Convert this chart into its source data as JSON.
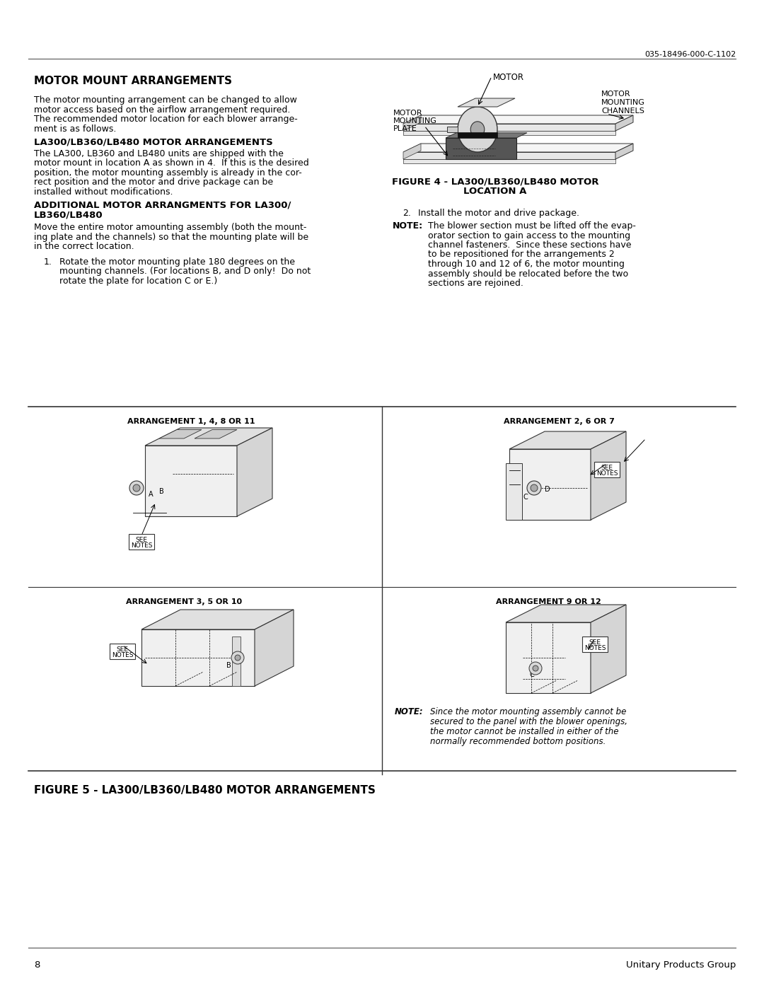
{
  "page_number": "8",
  "doc_number": "035-18496-000-C-1102",
  "footer_right": "Unitary Products Group",
  "bg_color": "#ffffff",
  "title": "MOTOR MOUNT ARRANGEMENTS",
  "para1_lines": [
    "The motor mounting arrangement can be changed to allow",
    "motor access based on the airflow arrangement required.",
    "The recommended motor location for each blower arrange-",
    "ment is as follows."
  ],
  "sub1": "LA300/LB360/LB480 MOTOR ARRANGEMENTS",
  "para2_lines": [
    "The LA300, LB360 and LB480 units are shipped with the",
    "motor mount in location A as shown in 4.  If this is the desired",
    "position, the motor mounting assembly is already in the cor-",
    "rect position and the motor and drive package can be",
    "installed without modifications."
  ],
  "sub2a": "ADDITIONAL MOTOR ARRANGMENTS FOR LA300/",
  "sub2b": "LB360/LB480",
  "para3_lines": [
    "Move the entire motor amounting assembly (both the mount-",
    "ing plate and the channels) so that the mounting plate will be",
    "in the correct location."
  ],
  "item1_num": "1.",
  "item1_lines": [
    "Rotate the motor mounting plate 180 degrees on the",
    "mounting channels. (For locations B, and D only!  Do not",
    "rotate the plate for location C or E.)"
  ],
  "fig4_cap1": "FIGURE 4 - LA300/LB360/LB480 MOTOR",
  "fig4_cap2": "LOCATION A",
  "item2_num": "2.",
  "item2_text": "Install the motor and drive package.",
  "note_label": "NOTE:",
  "note_lines": [
    "The blower section must be lifted off the evap-",
    "orator section to gain access to the mounting",
    "channel fasteners.  Since these sections have",
    "to be repositioned for the arrangements 2",
    "through 10 and 12 of 6, the motor mounting",
    "assembly should be relocated before the two",
    "sections are rejoined."
  ],
  "fig5_caption": "FIGURE 5 - LA300/LB360/LB480 MOTOR ARRANGEMENTS",
  "arr1_label": "ARRANGEMENT 1, 4, 8 OR 11",
  "arr2_label": "ARRANGEMENT 2, 6 OR 7",
  "arr3_label": "ARRANGEMENT 3, 5 OR 10",
  "arr4_label": "ARRANGEMENT 9 OR 12",
  "fig5_note_label": "NOTE:",
  "fig5_note_lines": [
    "Since the motor mounting assembly cannot be",
    "secured to the panel with the blower openings,",
    "the motor cannot be installed in either of the",
    "normally recommended bottom positions."
  ],
  "lbl_motor": "MOTOR",
  "lbl_motor_mounting_plate": [
    "MOTOR",
    "MOUNTING",
    "PLATE"
  ],
  "lbl_motor_mounting_channels": [
    "MOTOR",
    "MOUNTING",
    "CHANNELS"
  ]
}
